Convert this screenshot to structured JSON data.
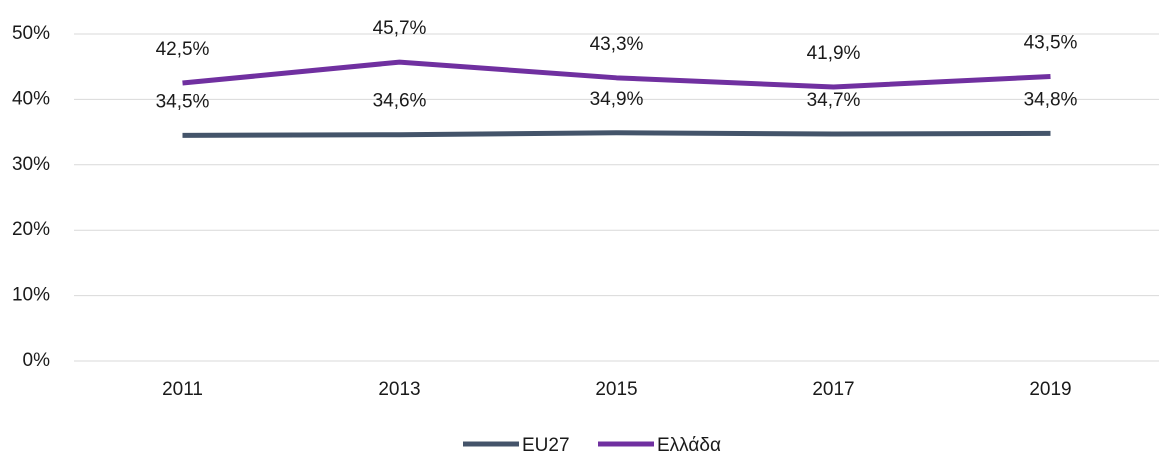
{
  "chart_data": {
    "type": "line",
    "categories": [
      "2011",
      "2013",
      "2015",
      "2017",
      "2019"
    ],
    "series": [
      {
        "name": "EU27",
        "color": "#44546a",
        "values": [
          34.5,
          34.6,
          34.9,
          34.7,
          34.8
        ],
        "value_labels": [
          "34,5%",
          "34,6%",
          "34,9%",
          "34,7%",
          "34,8%"
        ]
      },
      {
        "name": "Ελλάδα",
        "color": "#7030a0",
        "values": [
          42.5,
          45.7,
          43.3,
          41.9,
          43.5
        ],
        "value_labels": [
          "42,5%",
          "45,7%",
          "43,3%",
          "41,9%",
          "43,5%"
        ]
      }
    ],
    "ylim": [
      0,
      50
    ],
    "yticks": [
      {
        "value": 0,
        "label": "0%"
      },
      {
        "value": 10,
        "label": "10%"
      },
      {
        "value": 20,
        "label": "20%"
      },
      {
        "value": 30,
        "label": "30%"
      },
      {
        "value": 40,
        "label": "40%"
      },
      {
        "value": 50,
        "label": "50%"
      }
    ],
    "grid": true,
    "legend": "bottom"
  }
}
